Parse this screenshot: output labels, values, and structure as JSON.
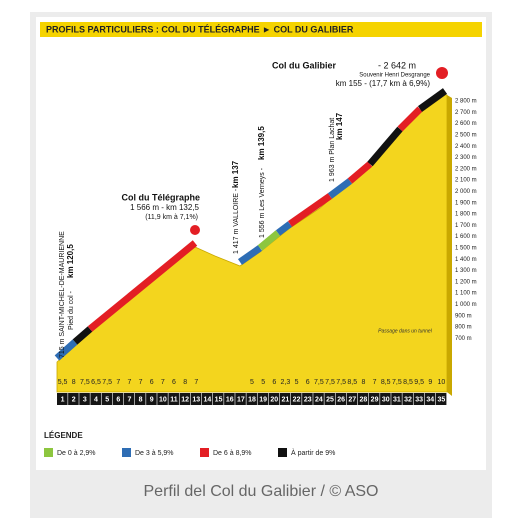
{
  "header": {
    "title": "PROFILS PARTICULIERS : COL DU TÉLÉGRAPHE ► COL DU GALIBIER"
  },
  "summits": {
    "galibier": {
      "name": "Col du Galibier",
      "altitude": "- 2 642 m",
      "note": "Souvenir Henri Desgrange",
      "detail": "km 155 - (17,7 km à 6,9%)"
    },
    "telegraphe": {
      "name": "Col du Télégraphe",
      "detail": "1 566 m - km 132,5",
      "climb": "(11,9 km à 7,1%)"
    }
  },
  "waypoints": [
    {
      "label": "715 m SAINT-MICHEL-DE-MAURIENNE",
      "sub": "Pied du col -",
      "km": "km 120,5"
    },
    {
      "label": "1 417 m VALLOIRE -",
      "km": "km 137"
    },
    {
      "label": "1 556 m Les Verneys -",
      "km": "km 139,5"
    },
    {
      "label": "1 963 m Plan Lachat",
      "km": "km 147"
    }
  ],
  "note": "Passage dans un tunnel",
  "altitude_scale": [
    "2 800 m",
    "2 700 m",
    "2 600 m",
    "2 500 m",
    "2 400 m",
    "2 300 m",
    "2 200 m",
    "2 100 m",
    "2 000 m",
    "1 900 m",
    "1 800 m",
    "1 700 m",
    "1 600 m",
    "1 500 m",
    "1 400 m",
    "1 300 m",
    "1 200 m",
    "1 100 m",
    "1 000 m",
    "900 m",
    "800 m",
    "700 m"
  ],
  "km_markers": [
    1,
    2,
    3,
    4,
    5,
    6,
    7,
    8,
    9,
    10,
    11,
    12,
    13,
    14,
    15,
    16,
    17,
    18,
    19,
    20,
    21,
    22,
    23,
    24,
    25,
    26,
    27,
    28,
    29,
    30,
    31,
    32,
    33,
    34,
    35
  ],
  "slopes_telegraphe": [
    "5,5",
    "8",
    "7,5",
    "6,5",
    "7,5",
    "7",
    "7",
    "7",
    "6",
    "7",
    "6",
    "8",
    "7"
  ],
  "slopes_galibier": [
    "5",
    "5",
    "6",
    "2,3",
    "5",
    "6",
    "7,5",
    "7,5",
    "7,5",
    "8,5",
    "8",
    "7",
    "8,5",
    "7,5",
    "8,5",
    "9,5",
    "9",
    "10"
  ],
  "legend": {
    "title": "LÉGENDE",
    "items": [
      {
        "label": "De 0 à 2,9%",
        "color": "#8dc63f"
      },
      {
        "label": "De 3 à 5,9%",
        "color": "#2e6db4"
      },
      {
        "label": "De 6 à 8,9%",
        "color": "#e31e24"
      },
      {
        "label": "À partir de 9%",
        "color": "#111111"
      }
    ]
  },
  "caption": "Perfil del Col du Galibier / © ASO"
}
